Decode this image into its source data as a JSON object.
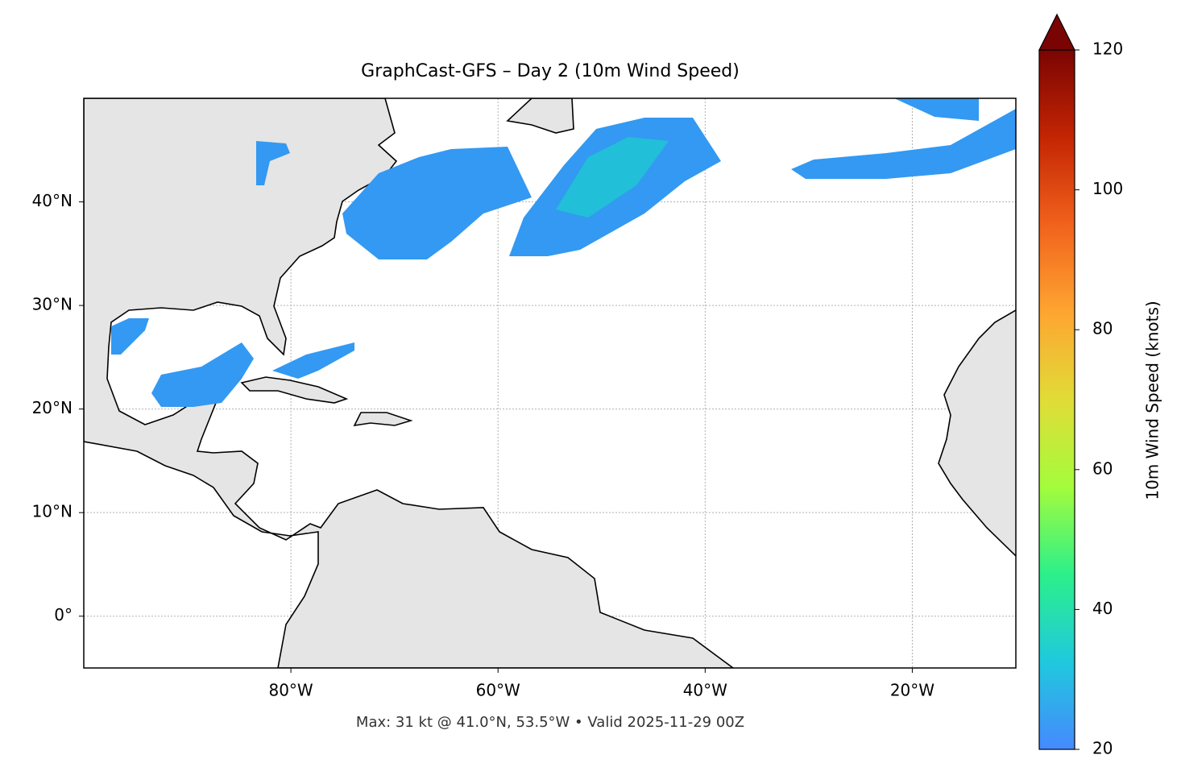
{
  "chart_data": {
    "type": "map",
    "title": "GraphCast-GFS – Day 2 (10m Wind Speed)",
    "annotation": "Max: 31 kt @ 41.0°N, 53.5°W • Valid 2025-11-29 00Z",
    "xlim": [
      -100,
      -10
    ],
    "ylim": [
      -5,
      50
    ],
    "xticks": [
      {
        "value": -80,
        "label": "80°W"
      },
      {
        "value": -60,
        "label": "60°W"
      },
      {
        "value": -40,
        "label": "40°W"
      },
      {
        "value": -20,
        "label": "20°W"
      }
    ],
    "yticks": [
      {
        "value": 0,
        "label": "0°"
      },
      {
        "value": 10,
        "label": "10°N"
      },
      {
        "value": 20,
        "label": "20°N"
      },
      {
        "value": 30,
        "label": "30°N"
      },
      {
        "value": 40,
        "label": "40°N"
      }
    ],
    "grid": true,
    "colorbar": {
      "label": "10m Wind Speed (knots)",
      "lim": [
        20,
        120
      ],
      "ticks": [
        20,
        40,
        60,
        80,
        100,
        120
      ],
      "colors": [
        "#4689ff",
        "#1fc9dd",
        "#2cf08a",
        "#a4fc3c",
        "#e1dc37",
        "#fea531",
        "#f1621c",
        "#c42503",
        "#7a0403"
      ],
      "extend": "max"
    }
  }
}
